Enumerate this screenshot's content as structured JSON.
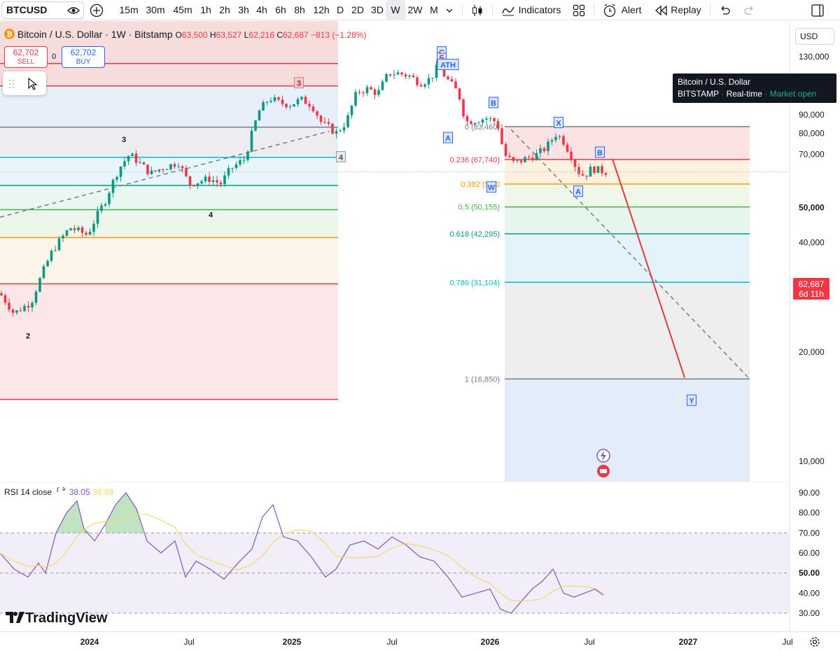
{
  "toolbar": {
    "symbol": "BTCUSD",
    "intervals": [
      "15m",
      "30m",
      "45m",
      "1h",
      "2h",
      "3h",
      "4h",
      "6h",
      "8h",
      "12h",
      "D",
      "2D",
      "3D",
      "W",
      "2W",
      "M"
    ],
    "active_interval": "W",
    "indicators_label": "Indicators",
    "alert_label": "Alert",
    "replay_label": "Replay"
  },
  "legend": {
    "title": "Bitcoin / U.S. Dollar · 1W · Bitstamp",
    "o_label": "O",
    "o": "63,500",
    "h_label": "H",
    "h": "63,527",
    "l_label": "L",
    "l": "62,216",
    "c_label": "C",
    "c": "62,687",
    "change": "−813 (−1.28%)"
  },
  "trade": {
    "sell_price": "62,702",
    "sell_label": "SELL",
    "spread": "0",
    "buy_price": "62,702",
    "buy_label": "BUY"
  },
  "currency": "USD",
  "tooltip": {
    "title": "Bitcoin / U.S. Dollar",
    "exchange": "BITSTAMP",
    "mode": "Real-time",
    "status": "Market open"
  },
  "price_badge": {
    "price": "62,687",
    "countdown": "6d 11h"
  },
  "price_axis": [
    {
      "label": "130,000",
      "v": 130000,
      "bold": false
    },
    {
      "label": "110,000",
      "v": 110000,
      "bold": false
    },
    {
      "label": "100,000",
      "v": 100000,
      "bold": true
    },
    {
      "label": "90,000",
      "v": 90000,
      "bold": false
    },
    {
      "label": "80,000",
      "v": 80000,
      "bold": false
    },
    {
      "label": "70,000",
      "v": 70000,
      "bold": false
    },
    {
      "label": "50,000",
      "v": 50000,
      "bold": true
    },
    {
      "label": "40,000",
      "v": 40000,
      "bold": false
    },
    {
      "label": "30,000",
      "v": 30000,
      "bold": false
    },
    {
      "label": "20,000",
      "v": 20000,
      "bold": false
    },
    {
      "label": "10,000",
      "v": 10000,
      "bold": false
    }
  ],
  "time_axis": [
    {
      "label": "2024",
      "bold": true,
      "xp": 128
    },
    {
      "label": "Jul",
      "bold": false,
      "xp": 270
    },
    {
      "label": "2025",
      "bold": true,
      "xp": 417
    },
    {
      "label": "Jul",
      "bold": false,
      "xp": 560
    },
    {
      "label": "2026",
      "bold": true,
      "xp": 700
    },
    {
      "label": "Jul",
      "bold": false,
      "xp": 842
    },
    {
      "label": "2027",
      "bold": true,
      "xp": 983
    },
    {
      "label": "Jul",
      "bold": false,
      "xp": 1125
    }
  ],
  "fib_right": [
    {
      "label": "0 (83,460)",
      "price": 83460,
      "color": "#787b86"
    },
    {
      "label": "0.236 (67,740)",
      "price": 67740,
      "color": "#f23645"
    },
    {
      "label": "0.382 (58,0",
      "price": 58000,
      "color": "#ff9800"
    },
    {
      "label": "0.5 (50,155)",
      "price": 50155,
      "color": "#4caf50"
    },
    {
      "label": "0.618 (42,295)",
      "price": 42295,
      "color": "#089981"
    },
    {
      "label": "0.786 (31,104)",
      "price": 31104,
      "color": "#00bcd4"
    },
    {
      "label": "1 (16,850)",
      "price": 16850,
      "color": "#787b86"
    }
  ],
  "fib_left": [
    {
      "price": 124500,
      "color": "#f23645"
    },
    {
      "price": 108000,
      "color": "#f23645"
    },
    {
      "price": 83200,
      "color": "#787b86"
    },
    {
      "price": 68700,
      "color": "#00bcd4"
    },
    {
      "price": 57500,
      "color": "#089981"
    },
    {
      "price": 49300,
      "color": "#4caf50"
    },
    {
      "price": 41300,
      "color": "#ff9800"
    },
    {
      "price": 30800,
      "color": "#f23645"
    },
    {
      "price": 14800,
      "color": "#f23645"
    }
  ],
  "wave_labels": [
    {
      "text": "C",
      "xp": 631,
      "price": 133700,
      "style": "box-blue"
    },
    {
      "text": "5",
      "xp": 631,
      "price": 128300,
      "style": "box-red"
    },
    {
      "text": "ATH",
      "xp": 640,
      "price": 123500,
      "style": "box-blue"
    },
    {
      "text": "3",
      "xp": 427,
      "price": 110000,
      "style": "box-pink"
    },
    {
      "text": "3",
      "xp": 177,
      "price": 77000,
      "style": "plain"
    },
    {
      "text": "4",
      "xp": 487,
      "price": 68800,
      "style": "box-gray"
    },
    {
      "text": "4",
      "xp": 301,
      "price": 47800,
      "style": "plain"
    },
    {
      "text": "2",
      "xp": 40,
      "price": 22200,
      "style": "plain"
    },
    {
      "text": "B",
      "xp": 705,
      "price": 97000,
      "style": "box-blue"
    },
    {
      "text": "A",
      "xp": 640,
      "price": 77700,
      "style": "box-blue"
    },
    {
      "text": "X",
      "xp": 798,
      "price": 85500,
      "style": "box-blue"
    },
    {
      "text": "B",
      "xp": 857,
      "price": 70800,
      "style": "box-blue"
    },
    {
      "text": "W",
      "xp": 702,
      "price": 56800,
      "style": "box-blue"
    },
    {
      "text": "A",
      "xp": 826,
      "price": 55300,
      "style": "box-blue"
    },
    {
      "text": "Y",
      "xp": 988,
      "price": 14700,
      "style": "box-blue"
    }
  ],
  "rsi": {
    "title": "RSI 14 close",
    "value": "38.05",
    "ma_value": "39.98",
    "axis": [
      {
        "label": "90.00",
        "v": 90,
        "bold": false
      },
      {
        "label": "80.00",
        "v": 80,
        "bold": false
      },
      {
        "label": "70.00",
        "v": 70,
        "bold": false
      },
      {
        "label": "60.00",
        "v": 60,
        "bold": false
      },
      {
        "label": "50.00",
        "v": 50,
        "bold": true
      },
      {
        "label": "40.00",
        "v": 40,
        "bold": false
      },
      {
        "label": "30.00",
        "v": 30,
        "bold": false
      }
    ]
  },
  "logo": "TradingView",
  "colors": {
    "up": "#089981",
    "down": "#f23645",
    "rsi": "#7e57c2",
    "rsi_ma": "#f5d76e"
  }
}
